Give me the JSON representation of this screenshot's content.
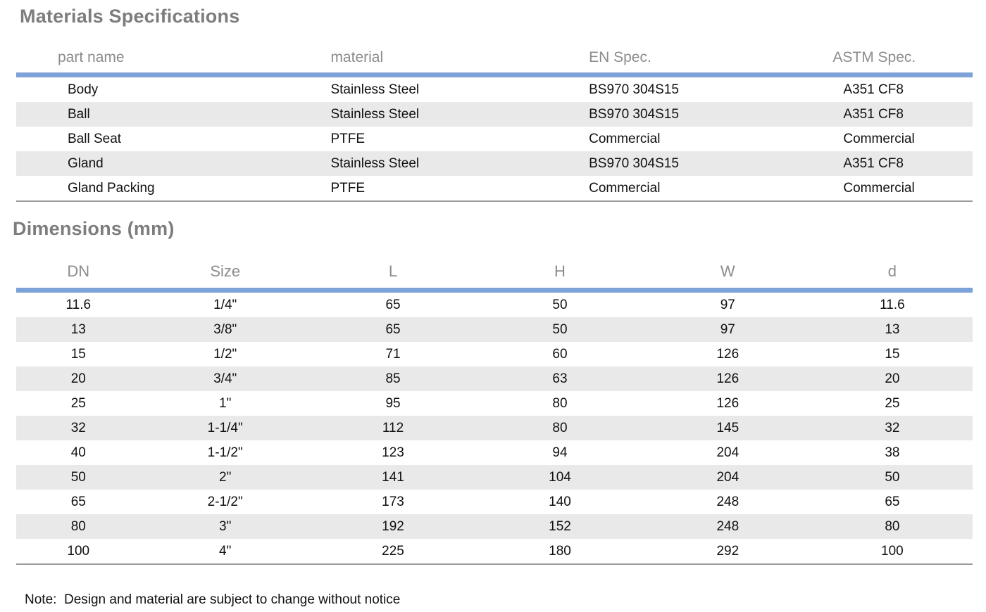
{
  "materials": {
    "title": "Materials Specifications",
    "columns": [
      "part name",
      "material",
      "EN Spec.",
      "ASTM Spec."
    ],
    "rows": [
      [
        "Body",
        "Stainless Steel",
        "BS970 304S15",
        "A351 CF8"
      ],
      [
        "Ball",
        "Stainless Steel",
        "BS970 304S15",
        "A351 CF8"
      ],
      [
        "Ball Seat",
        "PTFE",
        "Commercial",
        "Commercial"
      ],
      [
        "Gland",
        "Stainless Steel",
        "BS970 304S15",
        "A351 CF8"
      ],
      [
        "Gland Packing",
        "PTFE",
        "Commercial",
        "Commercial"
      ]
    ]
  },
  "dimensions": {
    "title": "Dimensions (mm)",
    "columns": [
      "DN",
      "Size",
      "L",
      "H",
      "W",
      "d"
    ],
    "rows": [
      [
        "11.6",
        "1/4\"",
        "65",
        "50",
        "97",
        "11.6"
      ],
      [
        "13",
        "3/8\"",
        "65",
        "50",
        "97",
        "13"
      ],
      [
        "15",
        "1/2\"",
        "71",
        "60",
        "126",
        "15"
      ],
      [
        "20",
        "3/4\"",
        "85",
        "63",
        "126",
        "20"
      ],
      [
        "25",
        "1\"",
        "95",
        "80",
        "126",
        "25"
      ],
      [
        "32",
        "1-1/4\"",
        "112",
        "80",
        "145",
        "32"
      ],
      [
        "40",
        "1-1/2\"",
        "123",
        "94",
        "204",
        "38"
      ],
      [
        "50",
        "2\"",
        "141",
        "104",
        "204",
        "50"
      ],
      [
        "65",
        "2-1/2\"",
        "173",
        "140",
        "248",
        "65"
      ],
      [
        "80",
        "3\"",
        "192",
        "152",
        "248",
        "80"
      ],
      [
        "100",
        "4\"",
        "225",
        "180",
        "292",
        "100"
      ]
    ]
  },
  "note": "Note:  Design and material are subject to change without notice",
  "colors": {
    "accent_rule": "#7CA2D8",
    "row_stripe": "#E9E9E9",
    "heading_text": "#7D7D7D",
    "column_header_text": "#8C8C8C",
    "body_text": "#111111",
    "bottom_rule": "#9A9A9A"
  }
}
